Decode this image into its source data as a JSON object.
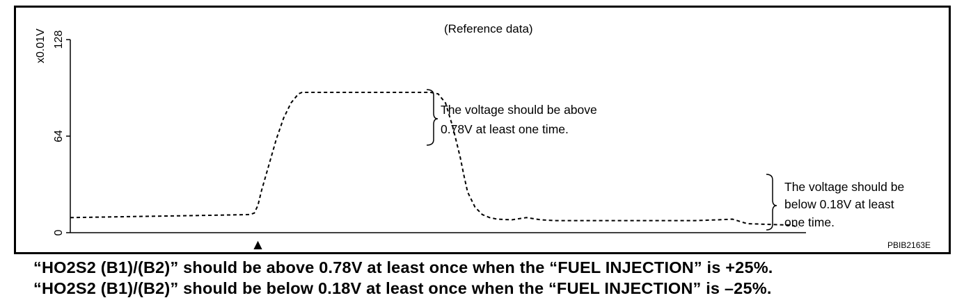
{
  "figure": {
    "reference_label": "(Reference data)",
    "figure_code": "PBIB2163E",
    "annotation_above": [
      "The voltage should be above",
      "0.78V at least one time."
    ],
    "annotation_below": [
      "The voltage should be",
      "below 0.18V at least",
      "one time."
    ],
    "marker_glyph": "▲"
  },
  "captions": {
    "line1": "“HO2S2 (B1)/(B2)” should be above 0.78V at least once when the “FUEL INJECTION” is +25%.",
    "line2": "“HO2S2 (B1)/(B2)” should be below 0.18V at least once when the “FUEL INJECTION” is –25%."
  },
  "chart_data": {
    "type": "line",
    "title": "(Reference data)",
    "ylabel": "x0.01V",
    "xlabel": "",
    "ylim": [
      0,
      128
    ],
    "yticks": [
      0,
      64,
      128
    ],
    "xlim": [
      0,
      100
    ],
    "grid": false,
    "line_style": "dashed",
    "series": [
      {
        "x": [
          0,
          5,
          10,
          15,
          20,
          24.4,
          25,
          25.5,
          26,
          27,
          28,
          29,
          30,
          31,
          31.5,
          32,
          33,
          35,
          40,
          45,
          49,
          50,
          51,
          52,
          53,
          53.5,
          54,
          55,
          56,
          57,
          58,
          60,
          62,
          64,
          66,
          70,
          75,
          80,
          85,
          88,
          90,
          92,
          95,
          98,
          99
        ],
        "values": [
          10,
          10.4,
          10.8,
          11.2,
          11.6,
          12,
          13,
          18,
          28,
          45,
          62,
          76,
          86,
          92,
          93,
          93,
          93,
          93,
          93,
          93,
          93,
          92,
          86,
          70,
          50,
          38,
          27,
          17,
          12,
          10,
          9,
          8.5,
          10,
          8.5,
          8,
          8,
          8,
          8,
          8,
          8.5,
          9,
          6,
          5.5,
          5,
          3.5
        ]
      }
    ],
    "trigger_marker_x": 25.5,
    "reference_lines": [
      {
        "value": 78,
        "side": "above"
      },
      {
        "value": 18,
        "side": "below"
      }
    ]
  }
}
